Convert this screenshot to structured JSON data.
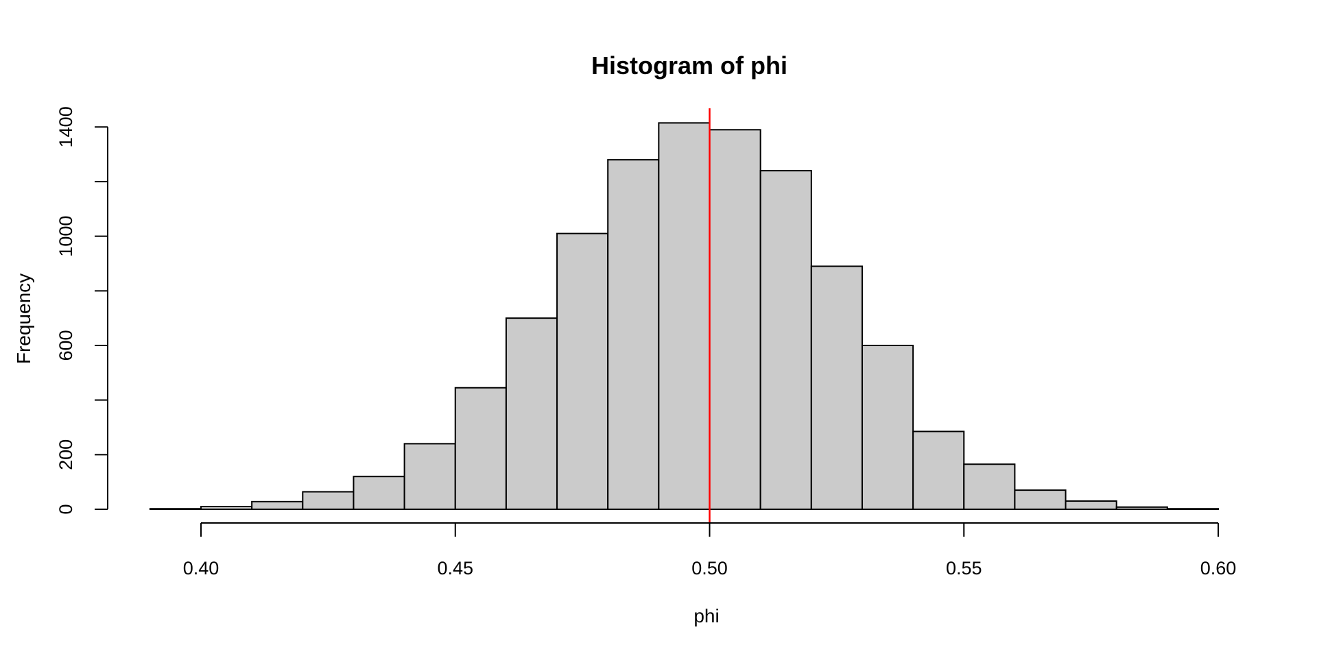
{
  "chart_data": {
    "type": "bar",
    "title": "Histogram of phi",
    "xlabel": "phi",
    "ylabel": "Frequency",
    "bin_start": 0.39,
    "bin_width": 0.01,
    "bins": [
      {
        "from": 0.39,
        "to": 0.4,
        "count": 2
      },
      {
        "from": 0.4,
        "to": 0.41,
        "count": 10
      },
      {
        "from": 0.41,
        "to": 0.42,
        "count": 28
      },
      {
        "from": 0.42,
        "to": 0.43,
        "count": 64
      },
      {
        "from": 0.43,
        "to": 0.44,
        "count": 120
      },
      {
        "from": 0.44,
        "to": 0.45,
        "count": 240
      },
      {
        "from": 0.45,
        "to": 0.46,
        "count": 445
      },
      {
        "from": 0.46,
        "to": 0.47,
        "count": 700
      },
      {
        "from": 0.47,
        "to": 0.48,
        "count": 1010
      },
      {
        "from": 0.48,
        "to": 0.49,
        "count": 1280
      },
      {
        "from": 0.49,
        "to": 0.5,
        "count": 1415
      },
      {
        "from": 0.5,
        "to": 0.51,
        "count": 1390
      },
      {
        "from": 0.51,
        "to": 0.52,
        "count": 1240
      },
      {
        "from": 0.52,
        "to": 0.53,
        "count": 890
      },
      {
        "from": 0.53,
        "to": 0.54,
        "count": 600
      },
      {
        "from": 0.54,
        "to": 0.55,
        "count": 285
      },
      {
        "from": 0.55,
        "to": 0.56,
        "count": 165
      },
      {
        "from": 0.56,
        "to": 0.57,
        "count": 70
      },
      {
        "from": 0.57,
        "to": 0.58,
        "count": 30
      },
      {
        "from": 0.58,
        "to": 0.59,
        "count": 8
      },
      {
        "from": 0.59,
        "to": 0.6,
        "count": 2
      }
    ],
    "x_ticks": [
      {
        "value": 0.4,
        "label": "0.40"
      },
      {
        "value": 0.45,
        "label": "0.45"
      },
      {
        "value": 0.5,
        "label": "0.50"
      },
      {
        "value": 0.55,
        "label": "0.55"
      },
      {
        "value": 0.6,
        "label": "0.60"
      }
    ],
    "y_ticks": [
      {
        "value": 0,
        "label": "0"
      },
      {
        "value": 200,
        "label": "200"
      },
      {
        "value": 400,
        "label": ""
      },
      {
        "value": 600,
        "label": "600"
      },
      {
        "value": 800,
        "label": ""
      },
      {
        "value": 1000,
        "label": "1000"
      },
      {
        "value": 1200,
        "label": ""
      },
      {
        "value": 1400,
        "label": "1400"
      }
    ],
    "ylim": [
      0,
      1400
    ],
    "xlim": [
      0.39,
      0.6
    ],
    "grid": false,
    "legend": null,
    "reference_line": {
      "x": 0.5,
      "color": "#FF0000"
    },
    "bar_fill": "#CBCBCB",
    "bar_stroke": "#000000",
    "axis_color": "#000000"
  }
}
